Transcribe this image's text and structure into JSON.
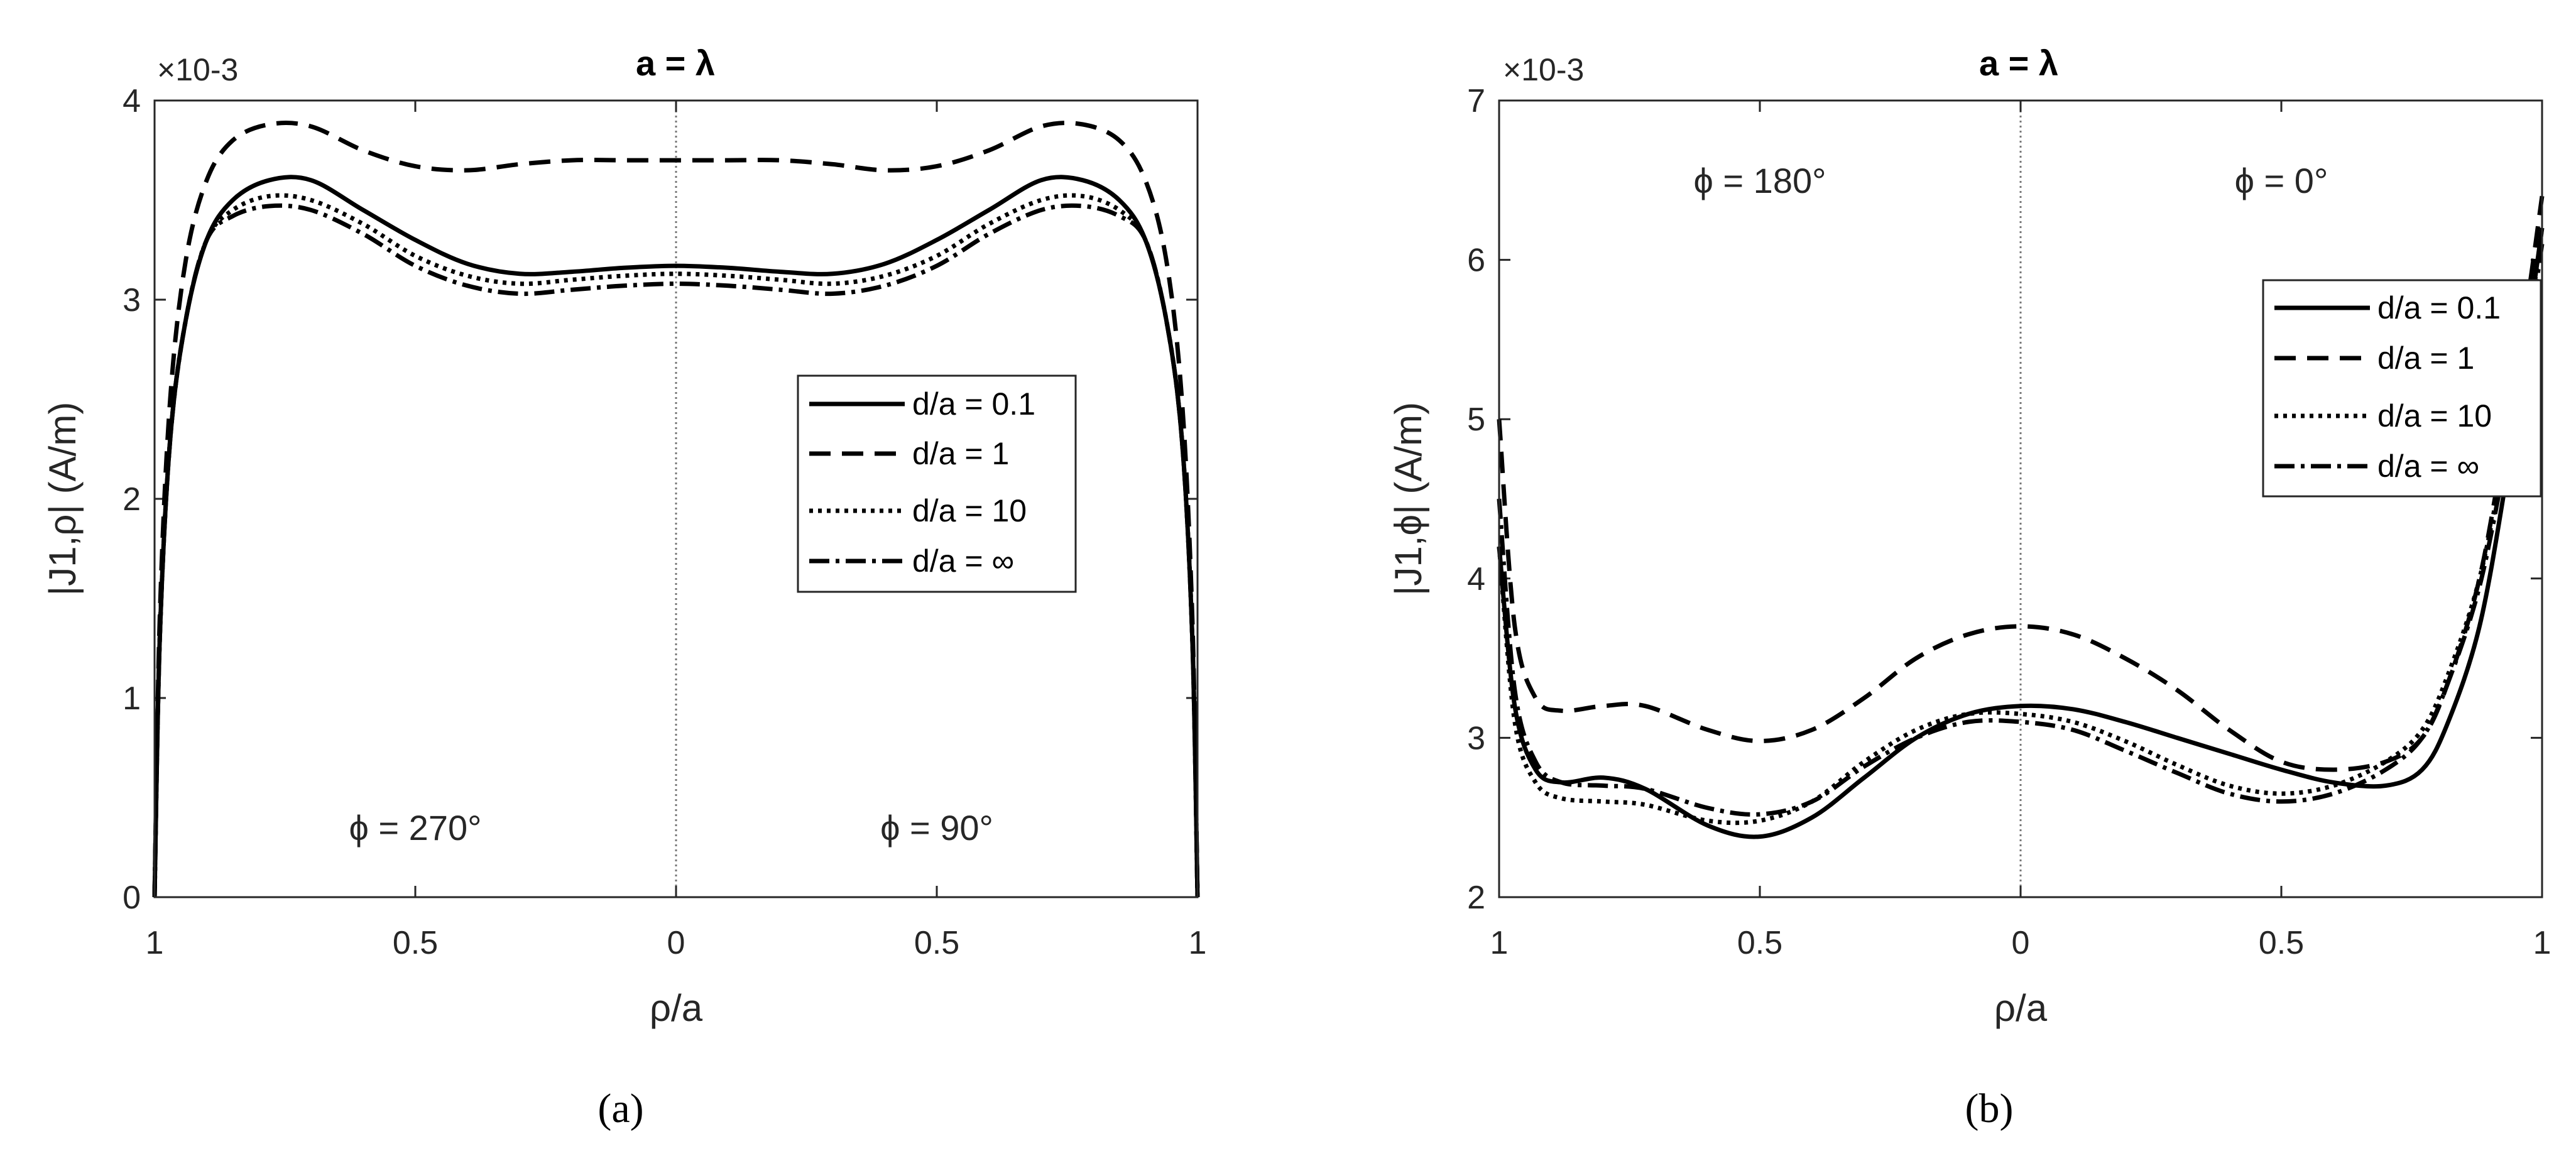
{
  "chart_data": [
    {
      "type": "line",
      "panel": "a",
      "caption": "(a)",
      "title": "a = λ",
      "xlabel": "ρ/a",
      "ylabel": "|J1,ρ| (A/m)",
      "y_exponent": "×10-3",
      "x_domain": [
        -1,
        1
      ],
      "x_tick_values": [
        -1,
        -0.5,
        0,
        0.5,
        1
      ],
      "x_tick_labels": [
        "1",
        "0.5",
        "0",
        "0.5",
        "1"
      ],
      "ylim": [
        0,
        4
      ],
      "y_ticks": [
        0,
        1,
        2,
        3,
        4
      ],
      "y_tick_labels": [
        "0",
        "1",
        "2",
        "3",
        "4"
      ],
      "annotations": [
        {
          "text": "ϕ = 270°",
          "x": -0.5,
          "y": 0.35
        },
        {
          "text": "ϕ = 90°",
          "x": 0.5,
          "y": 0.35
        }
      ],
      "legend_position": "right-middle",
      "series": [
        {
          "name": "d/a = 0.1",
          "style": "solid",
          "x": [
            -1,
            -0.99,
            -0.97,
            -0.94,
            -0.9,
            -0.85,
            -0.78,
            -0.7,
            -0.6,
            -0.5,
            -0.4,
            -0.3,
            -0.2,
            -0.1,
            0,
            0.1,
            0.2,
            0.3,
            0.4,
            0.5,
            0.6,
            0.7,
            0.78,
            0.85,
            0.9,
            0.94,
            0.97,
            0.99,
            1
          ],
          "y": [
            0,
            1.3,
            2.3,
            2.9,
            3.3,
            3.5,
            3.6,
            3.6,
            3.45,
            3.3,
            3.18,
            3.13,
            3.14,
            3.16,
            3.17,
            3.16,
            3.14,
            3.13,
            3.18,
            3.3,
            3.45,
            3.6,
            3.6,
            3.5,
            3.3,
            2.9,
            2.3,
            1.3,
            0
          ]
        },
        {
          "name": "d/a = 1",
          "style": "dashed",
          "x": [
            -1,
            -0.99,
            -0.97,
            -0.94,
            -0.9,
            -0.85,
            -0.78,
            -0.7,
            -0.6,
            -0.5,
            -0.4,
            -0.3,
            -0.2,
            -0.1,
            0,
            0.1,
            0.2,
            0.3,
            0.4,
            0.5,
            0.6,
            0.7,
            0.78,
            0.85,
            0.9,
            0.94,
            0.97,
            0.99,
            1
          ],
          "y": [
            0,
            1.4,
            2.5,
            3.2,
            3.6,
            3.8,
            3.88,
            3.87,
            3.75,
            3.67,
            3.65,
            3.68,
            3.7,
            3.7,
            3.7,
            3.7,
            3.7,
            3.68,
            3.65,
            3.67,
            3.75,
            3.87,
            3.88,
            3.8,
            3.6,
            3.2,
            2.5,
            1.4,
            0
          ]
        },
        {
          "name": "d/a = 10",
          "style": "dotted",
          "x": [
            -1,
            -0.99,
            -0.97,
            -0.94,
            -0.9,
            -0.85,
            -0.78,
            -0.7,
            -0.6,
            -0.5,
            -0.4,
            -0.3,
            -0.2,
            -0.1,
            0,
            0.1,
            0.2,
            0.3,
            0.4,
            0.5,
            0.6,
            0.7,
            0.78,
            0.85,
            0.9,
            0.94,
            0.97,
            0.99,
            1
          ],
          "y": [
            0,
            1.3,
            2.3,
            2.9,
            3.3,
            3.45,
            3.52,
            3.5,
            3.38,
            3.22,
            3.12,
            3.08,
            3.1,
            3.12,
            3.13,
            3.12,
            3.1,
            3.08,
            3.12,
            3.22,
            3.38,
            3.5,
            3.52,
            3.45,
            3.3,
            2.9,
            2.3,
            1.3,
            0
          ]
        },
        {
          "name": "d/a = ∞",
          "style": "dashdot",
          "x": [
            -1,
            -0.99,
            -0.97,
            -0.94,
            -0.9,
            -0.85,
            -0.78,
            -0.7,
            -0.6,
            -0.5,
            -0.4,
            -0.3,
            -0.2,
            -0.1,
            0,
            0.1,
            0.2,
            0.3,
            0.4,
            0.5,
            0.6,
            0.7,
            0.78,
            0.85,
            0.9,
            0.94,
            0.97,
            0.99,
            1
          ],
          "y": [
            0,
            1.3,
            2.3,
            2.9,
            3.3,
            3.42,
            3.47,
            3.45,
            3.33,
            3.17,
            3.07,
            3.03,
            3.05,
            3.07,
            3.08,
            3.07,
            3.05,
            3.03,
            3.07,
            3.17,
            3.33,
            3.45,
            3.47,
            3.42,
            3.3,
            2.9,
            2.3,
            1.3,
            0
          ]
        }
      ]
    },
    {
      "type": "line",
      "panel": "b",
      "caption": "(b)",
      "title": "a = λ",
      "xlabel": "ρ/a",
      "ylabel": "|J1,ϕ| (A/m)",
      "y_exponent": "×10-3",
      "x_domain": [
        -1,
        1
      ],
      "x_tick_values": [
        -1,
        -0.5,
        0,
        0.5,
        1
      ],
      "x_tick_labels": [
        "1",
        "0.5",
        "0",
        "0.5",
        "1"
      ],
      "ylim": [
        2,
        7
      ],
      "y_ticks": [
        2,
        3,
        4,
        5,
        6,
        7
      ],
      "y_tick_labels": [
        "2",
        "3",
        "4",
        "5",
        "6",
        "7"
      ],
      "annotations": [
        {
          "text": "ϕ = 180°",
          "x": -0.5,
          "y": 6.5
        },
        {
          "text": "ϕ = 0°",
          "x": 0.5,
          "y": 6.5
        }
      ],
      "legend_position": "upper-right",
      "series": [
        {
          "name": "d/a = 0.1",
          "style": "solid",
          "x": [
            -1,
            -0.97,
            -0.93,
            -0.88,
            -0.8,
            -0.72,
            -0.6,
            -0.5,
            -0.4,
            -0.3,
            -0.2,
            -0.1,
            0,
            0.1,
            0.2,
            0.3,
            0.4,
            0.5,
            0.6,
            0.7,
            0.77,
            0.82,
            0.88,
            0.93,
            0.97,
            1
          ],
          "y": [
            4.2,
            3.2,
            2.8,
            2.72,
            2.75,
            2.68,
            2.45,
            2.38,
            2.5,
            2.75,
            3.0,
            3.15,
            3.2,
            3.18,
            3.1,
            3.0,
            2.9,
            2.8,
            2.72,
            2.7,
            2.8,
            3.1,
            3.7,
            4.6,
            5.5,
            6.2
          ]
        },
        {
          "name": "d/a = 1",
          "style": "dashed",
          "x": [
            -1,
            -0.97,
            -0.93,
            -0.88,
            -0.8,
            -0.72,
            -0.6,
            -0.5,
            -0.4,
            -0.3,
            -0.2,
            -0.1,
            0,
            0.1,
            0.2,
            0.3,
            0.4,
            0.5,
            0.6,
            0.7,
            0.77,
            0.82,
            0.88,
            0.93,
            0.97,
            1
          ],
          "y": [
            5.0,
            3.7,
            3.25,
            3.17,
            3.2,
            3.2,
            3.05,
            2.98,
            3.05,
            3.25,
            3.5,
            3.65,
            3.7,
            3.65,
            3.5,
            3.3,
            3.05,
            2.85,
            2.8,
            2.85,
            3.0,
            3.35,
            4.0,
            4.9,
            5.7,
            6.4
          ]
        },
        {
          "name": "d/a = 10",
          "style": "dotted",
          "x": [
            -1,
            -0.97,
            -0.93,
            -0.88,
            -0.8,
            -0.72,
            -0.6,
            -0.5,
            -0.4,
            -0.3,
            -0.2,
            -0.1,
            0,
            0.1,
            0.2,
            0.3,
            0.4,
            0.5,
            0.6,
            0.7,
            0.77,
            0.82,
            0.88,
            0.93,
            0.97,
            1
          ],
          "y": [
            4.2,
            3.1,
            2.72,
            2.62,
            2.6,
            2.58,
            2.48,
            2.48,
            2.6,
            2.85,
            3.05,
            3.15,
            3.15,
            3.1,
            2.98,
            2.83,
            2.7,
            2.65,
            2.7,
            2.85,
            3.05,
            3.4,
            4.0,
            4.8,
            5.5,
            6.2
          ]
        },
        {
          "name": "d/a = ∞",
          "style": "dashdot",
          "x": [
            -1,
            -0.97,
            -0.93,
            -0.88,
            -0.8,
            -0.72,
            -0.6,
            -0.5,
            -0.4,
            -0.3,
            -0.2,
            -0.1,
            0,
            0.1,
            0.2,
            0.3,
            0.4,
            0.5,
            0.6,
            0.7,
            0.77,
            0.82,
            0.88,
            0.93,
            0.97,
            1
          ],
          "y": [
            4.5,
            3.3,
            2.85,
            2.72,
            2.7,
            2.68,
            2.56,
            2.52,
            2.6,
            2.82,
            3.0,
            3.1,
            3.1,
            3.05,
            2.92,
            2.78,
            2.65,
            2.6,
            2.65,
            2.8,
            3.0,
            3.35,
            3.95,
            4.75,
            5.45,
            6.1
          ]
        }
      ]
    }
  ]
}
